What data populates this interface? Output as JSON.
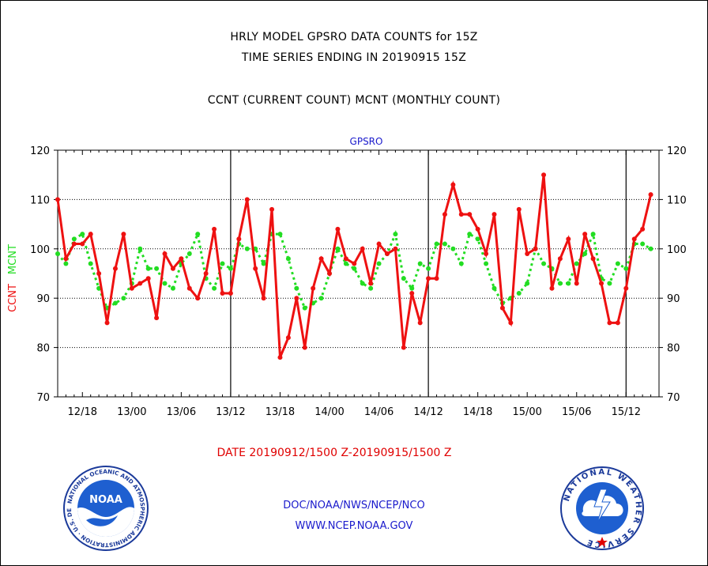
{
  "header": {
    "line1": "HRLY MODEL GPSRO DATA COUNTS for 15Z",
    "line2": "TIME SERIES ENDING IN 20190915 15Z",
    "line3": "CCNT (CURRENT COUNT) MCNT (MONTHLY COUNT)"
  },
  "footer": {
    "date_range": "DATE 20190912/1500 Z-20190915/1500 Z",
    "org": "DOC/NOAA/NWS/NCEP/NCO",
    "url": "WWW.NCEP.NOAA.GOV"
  },
  "logos": {
    "left": {
      "icon": "noaa-logo-icon",
      "text": "NOAA",
      "ring_text": "NATIONAL OCEANIC AND ATMOSPHERIC ADMINISTRATION · U.S. DEPARTMENT OF COMMERCE"
    },
    "right": {
      "icon": "nws-logo-icon",
      "ring_text": "NATIONAL WEATHER SERVICE"
    }
  },
  "colors": {
    "ccnt": "#ee1111",
    "mcnt": "#22dd22",
    "panel_label": "#1a1acc",
    "date": "#e00000"
  },
  "chart_data": {
    "type": "line",
    "panel_label": "GPSRO",
    "ylabel_left": [
      "CCNT",
      "MCNT"
    ],
    "ylim": [
      70,
      120
    ],
    "yticks": [
      70,
      80,
      90,
      100,
      110,
      120
    ],
    "xlim": [
      0,
      73
    ],
    "xticks": [
      {
        "hour": 3,
        "label": "12/18"
      },
      {
        "hour": 9,
        "label": "13/00"
      },
      {
        "hour": 15,
        "label": "13/06"
      },
      {
        "hour": 21,
        "label": "13/12"
      },
      {
        "hour": 27,
        "label": "13/18"
      },
      {
        "hour": 33,
        "label": "14/00"
      },
      {
        "hour": 39,
        "label": "14/06"
      },
      {
        "hour": 45,
        "label": "14/12"
      },
      {
        "hour": 51,
        "label": "14/18"
      },
      {
        "hour": 57,
        "label": "15/00"
      },
      {
        "hour": 63,
        "label": "15/06"
      },
      {
        "hour": 69,
        "label": "15/12"
      }
    ],
    "day_boundaries": [
      21,
      45,
      69
    ],
    "grid": "horizontal dotted",
    "series": [
      {
        "name": "CCNT",
        "values": [
          110,
          98,
          101,
          101,
          103,
          95,
          85,
          96,
          103,
          92,
          93,
          94,
          86,
          99,
          96,
          98,
          92,
          90,
          95,
          104,
          91,
          91,
          102,
          110,
          96,
          90,
          108,
          78,
          82,
          90,
          80,
          92,
          98,
          95,
          104,
          98,
          97,
          100,
          93,
          101,
          99,
          100,
          80,
          91,
          85,
          94,
          94,
          107,
          113,
          107,
          107,
          104,
          99,
          107,
          88,
          85,
          108,
          99,
          100,
          115,
          92,
          98,
          102,
          93,
          103,
          98,
          93,
          85,
          85,
          92,
          102,
          104,
          111
        ]
      },
      {
        "name": "MCNT",
        "values": [
          99,
          97,
          102,
          103,
          97,
          92,
          88,
          89,
          90,
          93,
          100,
          96,
          96,
          93,
          92,
          97,
          99,
          103,
          94,
          92,
          97,
          96,
          101,
          100,
          100,
          97,
          103,
          103,
          98,
          92,
          88,
          89,
          90,
          95,
          100,
          97,
          96,
          93,
          92,
          97,
          99,
          103,
          94,
          92,
          97,
          96,
          101,
          101,
          100,
          97,
          103,
          102,
          97,
          92,
          89,
          90,
          91,
          93,
          100,
          97,
          96,
          93,
          93,
          97,
          99,
          103,
          94,
          93,
          97,
          96,
          101,
          101,
          100
        ]
      }
    ]
  }
}
